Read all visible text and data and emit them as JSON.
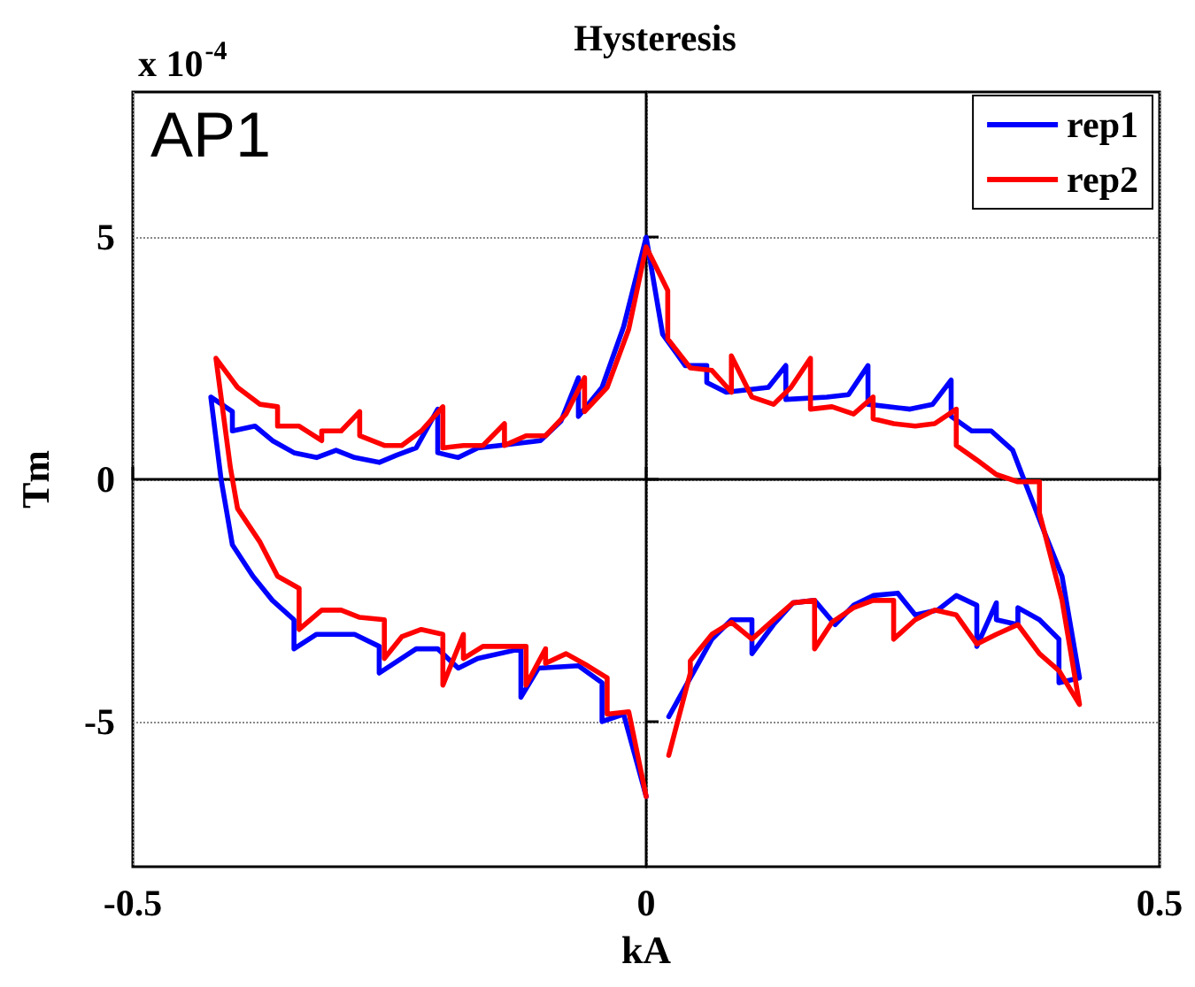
{
  "chart_data": {
    "type": "line",
    "title": "Hysteresis",
    "xlabel": "kA",
    "ylabel": "Tm",
    "annotations": [
      "x 10$^{-4}$",
      "AP1"
    ],
    "xlim": [
      -0.5,
      0.5
    ],
    "xticks": [
      -0.5,
      0,
      0.5
    ],
    "ylim": [
      -8,
      8
    ],
    "yticks": [
      -5,
      0,
      5
    ],
    "grid": true,
    "legend": "top right",
    "marker": "none",
    "line_style": "solid",
    "series": [
      {
        "name": "rep1",
        "color": "#0000ff",
        "x": [
          0,
          -0.022,
          -0.043,
          -0.043,
          -0.066,
          -0.105,
          -0.122,
          -0.122,
          -0.164,
          -0.183,
          -0.203,
          -0.224,
          -0.26,
          -0.26,
          -0.284,
          -0.321,
          -0.343,
          -0.343,
          -0.364,
          -0.383,
          -0.403,
          -0.414,
          -0.424,
          -0.403,
          -0.403,
          -0.381,
          -0.364,
          -0.343,
          -0.321,
          -0.302,
          -0.284,
          -0.26,
          -0.243,
          -0.224,
          -0.203,
          -0.203,
          -0.183,
          -0.164,
          -0.143,
          -0.103,
          -0.083,
          -0.066,
          -0.066,
          -0.043,
          -0.022,
          0,
          0.016,
          0.038,
          0.059,
          0.059,
          0.078,
          0.119,
          0.136,
          0.136,
          0.176,
          0.197,
          0.216,
          0.216,
          0.257,
          0.279,
          0.297,
          0.297,
          0.317,
          0.336,
          0.357,
          0.366,
          0.388,
          0.405,
          0.422,
          0.402,
          0.402,
          0.383,
          0.362,
          0.362,
          0.341,
          0.341,
          0.322,
          0.322,
          0.302,
          0.284,
          0.262,
          0.245,
          0.221,
          0.202,
          0.184,
          0.164,
          0.143,
          0.124,
          0.103,
          0.103,
          0.083,
          0.064,
          0.043,
          0.022
        ],
        "values": [
          -6.55,
          -4.85,
          -5.0,
          -4.2,
          -3.85,
          -3.9,
          -4.5,
          -3.5,
          -3.7,
          -3.9,
          -3.5,
          -3.5,
          -4.0,
          -3.45,
          -3.2,
          -3.2,
          -3.5,
          -2.9,
          -2.5,
          -2.0,
          -1.35,
          0,
          1.7,
          1.4,
          1.0,
          1.1,
          0.8,
          0.55,
          0.45,
          0.6,
          0.45,
          0.35,
          0.5,
          0.65,
          1.45,
          0.55,
          0.45,
          0.65,
          0.7,
          0.8,
          1.2,
          2.1,
          1.3,
          1.9,
          3.15,
          5.0,
          3.0,
          2.35,
          2.35,
          2.0,
          1.8,
          1.9,
          2.35,
          1.65,
          1.7,
          1.75,
          2.35,
          1.55,
          1.45,
          1.55,
          2.05,
          1.3,
          1.0,
          1.0,
          0.6,
          0.1,
          -1.1,
          -2.0,
          -4.1,
          -4.2,
          -3.3,
          -2.9,
          -2.65,
          -3.0,
          -2.9,
          -2.55,
          -3.45,
          -2.6,
          -2.4,
          -2.7,
          -2.8,
          -2.35,
          -2.4,
          -2.6,
          -3.0,
          -2.5,
          -2.55,
          -3.0,
          -3.6,
          -2.9,
          -2.9,
          -3.3,
          -4.1,
          -4.9
        ]
      },
      {
        "name": "rep2",
        "color": "#ff0000",
        "x": [
          0,
          -0.017,
          -0.038,
          -0.038,
          -0.057,
          -0.078,
          -0.098,
          -0.098,
          -0.117,
          -0.117,
          -0.138,
          -0.159,
          -0.178,
          -0.178,
          -0.198,
          -0.198,
          -0.219,
          -0.238,
          -0.255,
          -0.255,
          -0.279,
          -0.297,
          -0.316,
          -0.338,
          -0.338,
          -0.359,
          -0.376,
          -0.398,
          -0.405,
          -0.419,
          -0.398,
          -0.376,
          -0.359,
          -0.359,
          -0.338,
          -0.316,
          -0.316,
          -0.297,
          -0.279,
          -0.279,
          -0.255,
          -0.238,
          -0.219,
          -0.198,
          -0.198,
          -0.178,
          -0.159,
          -0.138,
          -0.138,
          -0.117,
          -0.098,
          -0.078,
          -0.06,
          -0.06,
          -0.038,
          -0.017,
          0,
          0.021,
          0.021,
          0.043,
          0.064,
          0.083,
          0.083,
          0.103,
          0.124,
          0.141,
          0.16,
          0.16,
          0.181,
          0.202,
          0.221,
          0.221,
          0.241,
          0.262,
          0.281,
          0.302,
          0.302,
          0.322,
          0.341,
          0.362,
          0.383,
          0.383,
          0.388,
          0.405,
          0.422,
          0.402,
          0.383,
          0.362,
          0.341,
          0.322,
          0.302,
          0.281,
          0.262,
          0.241,
          0.241,
          0.221,
          0.202,
          0.181,
          0.164,
          0.164,
          0.143,
          0.124,
          0.103,
          0.083,
          0.064,
          0.043,
          0.043,
          0.022
        ],
        "values": [
          -6.55,
          -4.8,
          -4.85,
          -4.1,
          -3.85,
          -3.6,
          -3.8,
          -3.5,
          -4.25,
          -3.45,
          -3.45,
          -3.45,
          -3.7,
          -3.2,
          -4.25,
          -3.2,
          -3.1,
          -3.25,
          -3.7,
          -2.9,
          -2.85,
          -2.7,
          -2.7,
          -3.1,
          -2.25,
          -2.0,
          -1.3,
          -0.6,
          0.25,
          2.5,
          1.9,
          1.55,
          1.5,
          1.1,
          1.1,
          0.8,
          1.0,
          1.0,
          1.4,
          0.9,
          0.7,
          0.7,
          1.0,
          1.5,
          0.65,
          0.7,
          0.7,
          1.15,
          0.7,
          0.9,
          0.9,
          1.35,
          2.1,
          1.4,
          1.9,
          3.1,
          4.8,
          3.9,
          2.9,
          2.3,
          2.25,
          1.8,
          2.55,
          1.7,
          1.55,
          1.9,
          2.5,
          1.45,
          1.5,
          1.35,
          1.7,
          1.25,
          1.15,
          1.1,
          1.15,
          1.45,
          0.7,
          0.4,
          0.1,
          -0.05,
          -0.05,
          -0.7,
          -1.1,
          -2.5,
          -4.65,
          -3.95,
          -3.6,
          -3.0,
          -3.2,
          -3.4,
          -2.8,
          -2.7,
          -2.9,
          -3.3,
          -2.5,
          -2.5,
          -2.65,
          -2.95,
          -3.5,
          -2.5,
          -2.55,
          -2.9,
          -3.3,
          -2.95,
          -3.2,
          -3.75,
          -4.0,
          -5.7
        ]
      }
    ]
  }
}
